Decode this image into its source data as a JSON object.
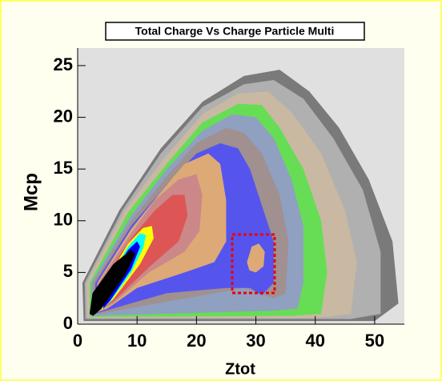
{
  "chart_data": {
    "type": "contour",
    "title": "Total Charge Vs Charge Particle Multi",
    "x_label": "Ztot",
    "y_label": "Mcp",
    "xlim": [
      0,
      55
    ],
    "ylim": [
      0,
      26.7
    ],
    "xticks": [
      0,
      10,
      20,
      30,
      40,
      50
    ],
    "yticks": [
      0,
      5,
      10,
      15,
      20,
      25
    ],
    "background": "#e0e0e0",
    "contours": [
      {
        "color": "#7a7a7a",
        "x": [
          1,
          0.8,
          7,
          14,
          21,
          28,
          34,
          39,
          44,
          49,
          53,
          54,
          50
        ],
        "y": [
          0.3,
          4,
          11,
          17,
          21.5,
          24,
          24.6,
          22.5,
          19,
          14,
          8,
          2,
          0.3
        ]
      },
      {
        "color": "#b0b0b0",
        "x": [
          1.3,
          1.2,
          7.5,
          14,
          21,
          28,
          33,
          38,
          43,
          48,
          51,
          51,
          46
        ],
        "y": [
          0.5,
          4,
          11,
          16.5,
          21,
          23.2,
          23.6,
          21.8,
          18,
          13,
          7,
          1,
          0.5
        ]
      },
      {
        "color": "#c9b9a2",
        "x": [
          1.6,
          1.5,
          8,
          14.5,
          21,
          27,
          32,
          36,
          41,
          45,
          47,
          46,
          40
        ],
        "y": [
          0.6,
          4,
          11,
          16,
          20.3,
          22.3,
          22.5,
          20.5,
          16.5,
          11,
          6,
          1,
          0.6
        ]
      },
      {
        "color": "#66dd55",
        "x": [
          2,
          2,
          8.5,
          15,
          21,
          27,
          31,
          34,
          38,
          41,
          42,
          41,
          36
        ],
        "y": [
          0.7,
          4,
          10.8,
          15.5,
          19.5,
          21.3,
          21.2,
          19,
          15,
          10,
          5,
          1,
          0.8
        ]
      },
      {
        "color": "#8fa0c0",
        "x": [
          2.2,
          2.3,
          9,
          15,
          21,
          26,
          30,
          33,
          36,
          38,
          38,
          37,
          33
        ],
        "y": [
          0.8,
          4,
          10.5,
          15,
          18.7,
          20.3,
          20,
          18,
          14,
          9.5,
          4,
          1.5,
          1.3
        ]
      },
      {
        "color": "#a09090",
        "x": [
          2.5,
          2.6,
          9,
          15,
          20,
          25,
          28,
          31,
          34,
          35.5,
          35,
          33,
          28
        ],
        "y": [
          0.9,
          4,
          10,
          14.3,
          17.5,
          19,
          18.5,
          16.5,
          12.5,
          8,
          3,
          2.5,
          3.5
        ]
      },
      {
        "color": "#5555ee",
        "x": [
          2.8,
          3,
          9,
          15,
          20,
          24,
          27,
          29,
          31,
          33,
          33,
          31,
          29,
          25,
          15
        ],
        "y": [
          1,
          4,
          9.5,
          13.5,
          16.5,
          17.5,
          17,
          15,
          11.5,
          8,
          4,
          2.8,
          3.5,
          3.5,
          3
        ]
      },
      {
        "color": "#ddaa77",
        "x": [
          3,
          3.3,
          9,
          14,
          18,
          22,
          24,
          25,
          25,
          23,
          18,
          10,
          5
        ],
        "y": [
          1.1,
          4,
          9.2,
          12.8,
          15.5,
          16.5,
          15.5,
          12,
          8,
          6,
          5,
          3.5,
          1.5
        ]
      },
      {
        "color": "#cc8888",
        "x": [
          3.2,
          3.5,
          9,
          13,
          17,
          20,
          21,
          20.5,
          18,
          12,
          6
        ],
        "y": [
          1.2,
          4,
          8.8,
          12,
          14,
          14.5,
          12.5,
          9,
          7,
          5,
          2
        ]
      },
      {
        "color": "#dd5555",
        "x": [
          3.5,
          4,
          9,
          13,
          16,
          18,
          18.5,
          17,
          12,
          6
        ],
        "y": [
          1.3,
          4,
          8.3,
          11,
          12.5,
          12.5,
          10.5,
          8,
          5.5,
          2.2
        ]
      },
      {
        "color": "#ffff00",
        "x": [
          4,
          4.3,
          8.5,
          11,
          12.5,
          12.8,
          10.5,
          6
        ],
        "y": [
          1.4,
          3.8,
          7.8,
          9.3,
          9.5,
          8.3,
          5.8,
          2.4
        ]
      },
      {
        "color": "#00ffff",
        "x": [
          4.2,
          4.6,
          8.5,
          10.5,
          11.5,
          11,
          9,
          5.5
        ],
        "y": [
          1.5,
          3.8,
          7.5,
          8.8,
          8.6,
          7.3,
          5,
          2.2
        ]
      },
      {
        "color": "#0000ee",
        "x": [
          4.3,
          4.8,
          8.5,
          10,
          10.5,
          9,
          5.5
        ],
        "y": [
          1.5,
          3.8,
          7.2,
          8,
          7.5,
          5.3,
          2.3
        ]
      },
      {
        "color": "#000000",
        "x": [
          2,
          2.5,
          6,
          9,
          9.7,
          8,
          4,
          2.6
        ],
        "y": [
          1,
          3,
          5.8,
          7.2,
          6.8,
          4.8,
          1.5,
          0.8
        ]
      },
      {
        "color": "#ddaa77",
        "x": [
          28.5,
          29.3,
          30.5,
          31.5,
          31.3,
          30,
          28.9
        ],
        "y": [
          6,
          7.5,
          7.8,
          7,
          5.6,
          5,
          5.2
        ]
      }
    ]
  }
}
